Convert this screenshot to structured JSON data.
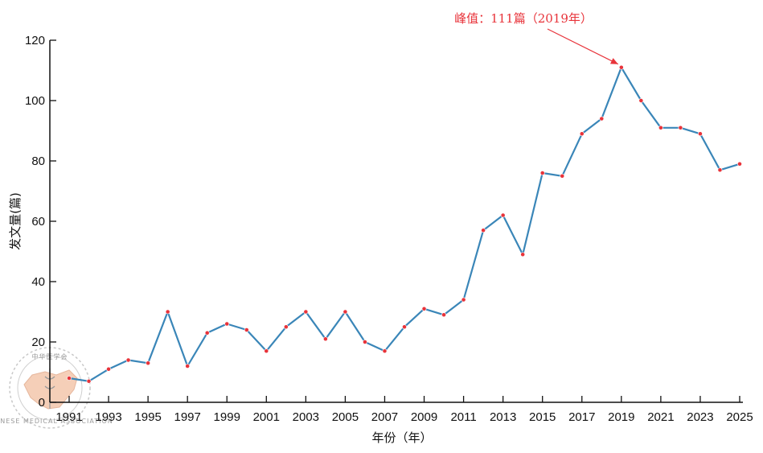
{
  "chart_data": {
    "type": "line",
    "xlabel": "年份（年）",
    "ylabel": "发文量(篇)",
    "xlim": [
      1991,
      2025
    ],
    "ylim": [
      0,
      120
    ],
    "yticks": [
      0,
      20,
      40,
      60,
      80,
      100,
      120
    ],
    "xticks": [
      1991,
      1993,
      1995,
      1997,
      1999,
      2001,
      2003,
      2005,
      2007,
      2009,
      2011,
      2013,
      2015,
      2017,
      2019,
      2021,
      2023,
      2025
    ],
    "x": [
      1991,
      1992,
      1993,
      1994,
      1995,
      1996,
      1997,
      1998,
      1999,
      2000,
      2001,
      2002,
      2003,
      2004,
      2005,
      2006,
      2007,
      2008,
      2009,
      2010,
      2011,
      2012,
      2013,
      2014,
      2015,
      2016,
      2017,
      2018,
      2019,
      2020,
      2021,
      2022,
      2023,
      2024,
      2025
    ],
    "values": [
      8,
      7,
      11,
      14,
      13,
      30,
      12,
      23,
      26,
      24,
      17,
      25,
      30,
      21,
      30,
      20,
      17,
      25,
      31,
      29,
      34,
      57,
      62,
      49,
      76,
      75,
      89,
      94,
      111,
      100,
      91,
      91,
      89,
      77,
      79
    ],
    "line_color": "#3a86b8",
    "marker_color": "#e8333a",
    "grid": false,
    "annotation": {
      "text": "峰值：111篇（2019年）",
      "x": 2019,
      "y": 111,
      "color": "#e8333a"
    }
  },
  "watermark": {
    "top_text": "中华医学会",
    "bottom_text": "CHINESE MEDICAL ASSOCIATION",
    "fill": "#f5cfb8"
  }
}
